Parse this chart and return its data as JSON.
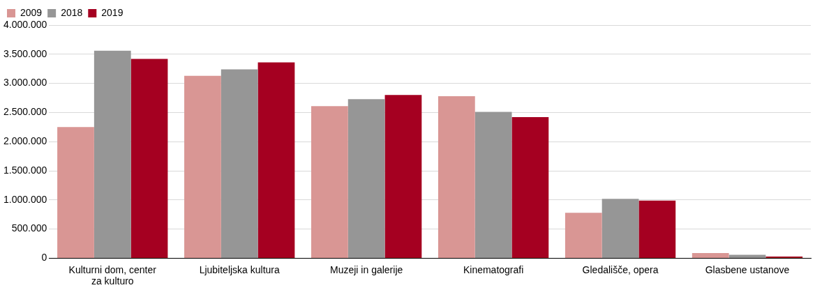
{
  "chart_data": {
    "type": "bar",
    "categories": [
      "Kulturni dom, center za kulturo",
      "Ljubiteljska kultura",
      "Muzeji in galerije",
      "Kinematografi",
      "Gledališče, opera",
      "Glasbene ustanove"
    ],
    "series": [
      {
        "name": "2009",
        "color": "#d99694",
        "values": [
          2250000,
          3130000,
          2610000,
          2780000,
          780000,
          90000
        ]
      },
      {
        "name": "2018",
        "color": "#969696",
        "values": [
          3560000,
          3240000,
          2730000,
          2510000,
          1020000,
          60000
        ]
      },
      {
        "name": "2019",
        "color": "#a50021",
        "values": [
          3420000,
          3360000,
          2800000,
          2420000,
          990000,
          30000
        ]
      }
    ],
    "ylim": [
      0,
      4000000
    ],
    "yticks": [
      0,
      {
        "value": 500000,
        "label": "500.000"
      },
      {
        "value": 1000000,
        "label": "1.000.000"
      },
      {
        "value": 1500000,
        "label": "1.500.000"
      },
      {
        "value": 2000000,
        "label": "2.000.000"
      },
      {
        "value": 2500000,
        "label": "2.500.000"
      },
      {
        "value": 3000000,
        "label": "3.000.000"
      },
      {
        "value": 3500000,
        "label": "3.500.000"
      },
      {
        "value": 4000000,
        "label": "4.000.000"
      }
    ],
    "grid": "y",
    "legend": "top left"
  }
}
